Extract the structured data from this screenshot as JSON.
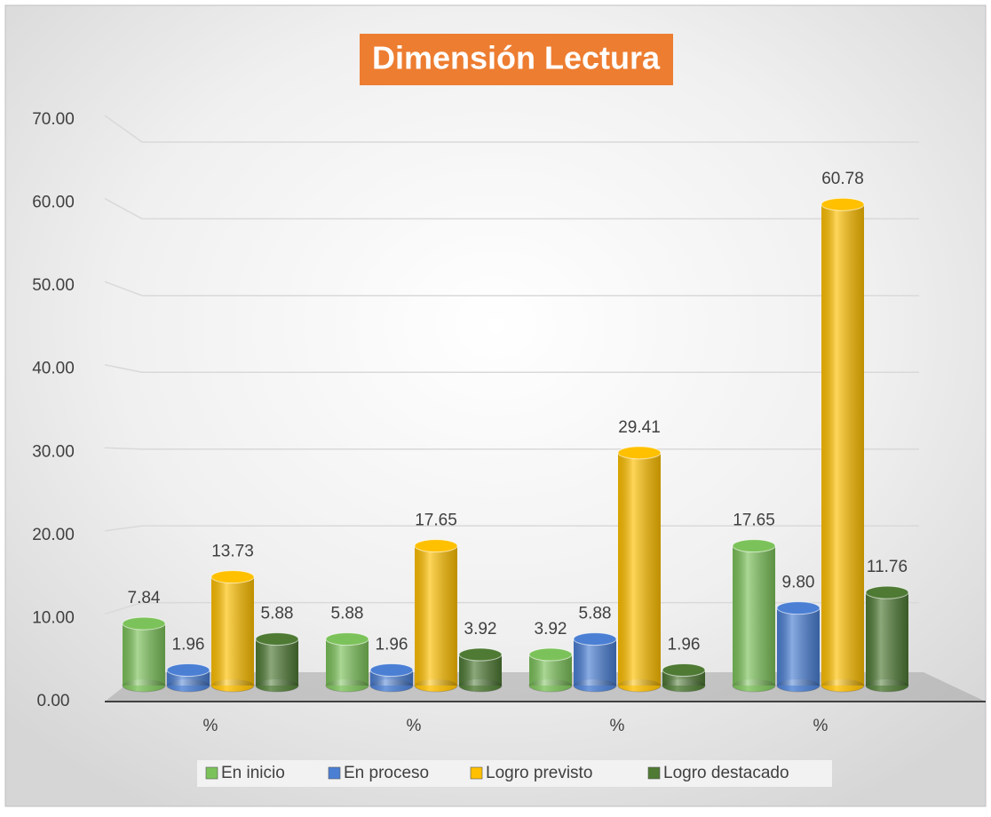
{
  "chart_data": {
    "type": "bar",
    "title": "Dimensión Lectura",
    "categories": [
      "%",
      "%",
      "%",
      "%"
    ],
    "series": [
      {
        "name": "En inicio",
        "color": "#7cc25a",
        "values": [
          7.84,
          5.88,
          3.92,
          17.65
        ],
        "value_labels": [
          "7.84",
          "5.88",
          "3.92",
          "17.65"
        ]
      },
      {
        "name": "En proceso",
        "color": "#4a7fd4",
        "values": [
          1.96,
          1.96,
          5.88,
          9.8
        ],
        "value_labels": [
          "1.96",
          "1.96",
          "5.88",
          "9.80"
        ]
      },
      {
        "name": "Logro previsto",
        "color": "#ffc000",
        "values": [
          13.73,
          17.65,
          29.41,
          60.78
        ],
        "value_labels": [
          "13.73",
          "17.65",
          "29.41",
          "60.78"
        ]
      },
      {
        "name": "Logro destacado",
        "color": "#4e7a34",
        "values": [
          5.88,
          3.92,
          1.96,
          11.76
        ],
        "value_labels": [
          "5.88",
          "3.92",
          "1.96",
          "11.76"
        ]
      }
    ],
    "ylim": [
      0,
      70
    ],
    "yticks": [
      {
        "value": 0,
        "label": "0.00"
      },
      {
        "value": 10,
        "label": "10.00"
      },
      {
        "value": 20,
        "label": "20.00"
      },
      {
        "value": 30,
        "label": "30.00"
      },
      {
        "value": 40,
        "label": "40.00"
      },
      {
        "value": 50,
        "label": "50.00"
      },
      {
        "value": 60,
        "label": "60.00"
      },
      {
        "value": 70,
        "label": "70.00"
      }
    ],
    "grid": true,
    "legend": "bottom"
  }
}
